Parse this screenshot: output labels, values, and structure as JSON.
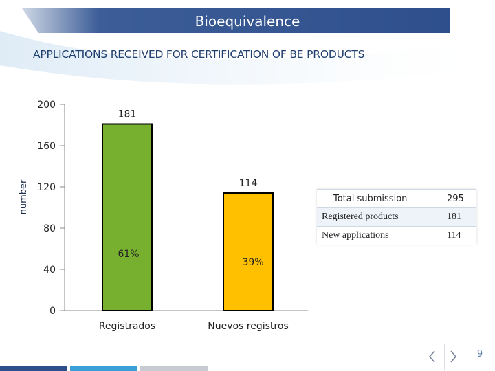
{
  "header": {
    "title": "Bioequivalence"
  },
  "subtitle": "APPLICATIONS RECEIVED FOR CERTIFICATION OF BE PRODUCTS",
  "chart_data": {
    "type": "bar",
    "categories": [
      "Registrados",
      "Nuevos registros"
    ],
    "values": [
      181,
      114
    ],
    "data_labels": [
      "181",
      "114"
    ],
    "percent_labels": [
      "61%",
      "39%"
    ],
    "ylabel": "number",
    "ylim": [
      0,
      200
    ],
    "yticks": [
      0,
      40,
      80,
      120,
      160,
      200
    ],
    "grid": false,
    "colors": [
      "#77b02f",
      "#ffc000"
    ]
  },
  "summary_table": {
    "rows": [
      {
        "label": "Total  submission",
        "value": "295"
      },
      {
        "label": "Registered products",
        "value": "181"
      },
      {
        "label": "New applications",
        "value": "114"
      }
    ]
  },
  "footer": {
    "page_number": "9",
    "prev_icon": "chevron-left-icon",
    "next_icon": "chevron-right-icon"
  },
  "colors": {
    "banner": "#2e4f8c",
    "accent": "#1f3f6e",
    "bar_outline": "#000000"
  }
}
